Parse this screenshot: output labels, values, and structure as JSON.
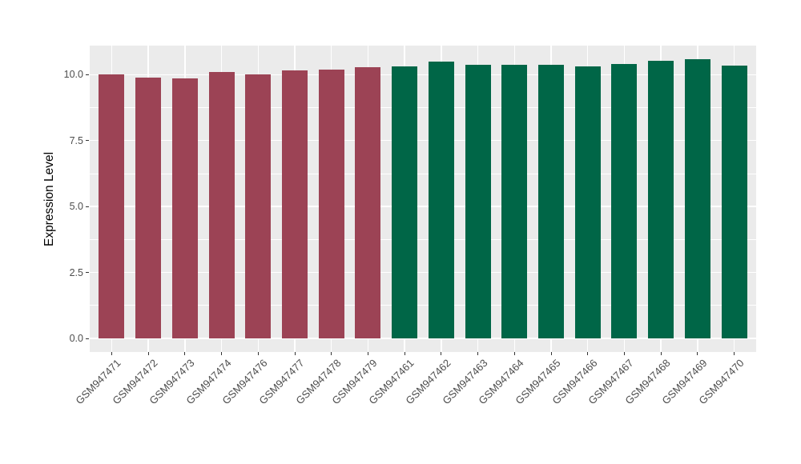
{
  "figure": {
    "background_color": "#FFFFFF",
    "panel_background_color": "#EBEBEB",
    "gridline_color": "#FFFFFF",
    "axis_text_color": "#4D4D4D",
    "axis_title_color": "#000000",
    "tick_mark_color": "#333333"
  },
  "chart_data": {
    "type": "bar",
    "title": "",
    "xlabel": "",
    "ylabel": "Expression Level",
    "legend": "none",
    "grid": true,
    "ylim": [
      -0.53,
      11.13
    ],
    "yticks": [
      0,
      2.5,
      5,
      7.5,
      10
    ],
    "ytick_labels": [
      "0.0",
      "2.5",
      "5.0",
      "7.5",
      "10.0"
    ],
    "yticks_minor": [
      1.25,
      3.75,
      6.25,
      8.75
    ],
    "bar_width_fraction": 0.7,
    "series": [
      {
        "name": "group-1",
        "color": "#9C4355",
        "categories": [
          "GSM947471",
          "GSM947472",
          "GSM947473",
          "GSM947474",
          "GSM947476",
          "GSM947477",
          "GSM947478",
          "GSM947479"
        ],
        "values": [
          10.0,
          9.9,
          9.85,
          10.1,
          10.02,
          10.15,
          10.2,
          10.27
        ]
      },
      {
        "name": "group-2",
        "color": "#006647",
        "categories": [
          "GSM947461",
          "GSM947462",
          "GSM947463",
          "GSM947464",
          "GSM947465",
          "GSM947466",
          "GSM947467",
          "GSM947468",
          "GSM947469",
          "GSM947470"
        ],
        "values": [
          10.3,
          10.5,
          10.36,
          10.38,
          10.38,
          10.3,
          10.4,
          10.53,
          10.6,
          10.33
        ]
      }
    ]
  }
}
